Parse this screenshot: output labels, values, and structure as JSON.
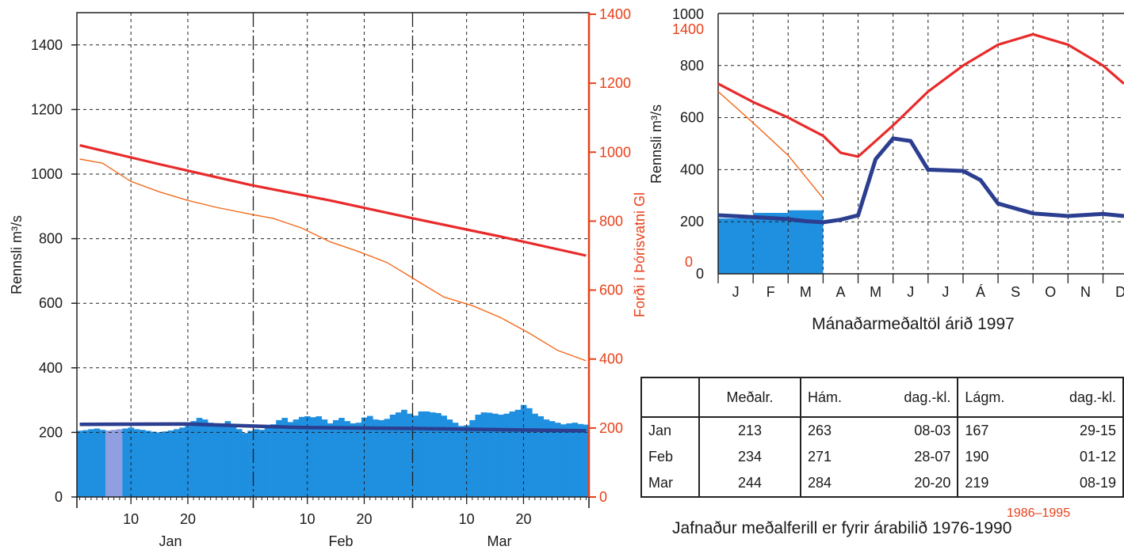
{
  "chart_data": [
    {
      "type": "bar+line",
      "ylabel": "Rennsli  m³/s",
      "ylabel_right": "Forði í Þórisvatni Gl",
      "ylim": [
        0,
        1500
      ],
      "ylim_right": [
        0,
        1400
      ],
      "yticks": [
        0,
        200,
        400,
        600,
        800,
        1000,
        1200,
        1400
      ],
      "yticks_right": [
        0,
        200,
        400,
        600,
        800,
        1000,
        1200,
        1400
      ],
      "xlim_days": [
        1,
        90
      ],
      "month_labels": [
        "Jan",
        "Feb",
        "Mar"
      ],
      "day_ticks": [
        {
          "day": 10,
          "label": "10"
        },
        {
          "day": 20,
          "label": "20"
        },
        {
          "day": 41,
          "label": "10"
        },
        {
          "day": 51,
          "label": "20"
        },
        {
          "day": 69,
          "label": "10"
        },
        {
          "day": 79,
          "label": "20"
        }
      ],
      "daily_flow": [
        205,
        207,
        210,
        212,
        208,
        206,
        208,
        210,
        212,
        215,
        210,
        208,
        205,
        202,
        200,
        203,
        206,
        210,
        215,
        220,
        235,
        245,
        240,
        230,
        228,
        225,
        235,
        222,
        210,
        198,
        205,
        210,
        208,
        215,
        225,
        238,
        245,
        232,
        240,
        248,
        250,
        247,
        250,
        240,
        228,
        238,
        245,
        235,
        228,
        230,
        246,
        251,
        240,
        238,
        242,
        255,
        262,
        270,
        258,
        252,
        265,
        265,
        262,
        260,
        252,
        240,
        230,
        220,
        222,
        238,
        255,
        262,
        261,
        258,
        255,
        258,
        265,
        270,
        285,
        275,
        258,
        250,
        240,
        235,
        230,
        225,
        228,
        230,
        226,
        224
      ],
      "highlight_days": [
        6,
        7,
        8
      ],
      "series": [
        {
          "name": "mean_flow",
          "color": "#2b3e90",
          "x": [
            1,
            20,
            40,
            60,
            90
          ],
          "values": [
            225,
            226,
            215,
            212,
            205
          ]
        },
        {
          "name": "reservoir",
          "color": "#e82a2a",
          "x": [
            1,
            15,
            31,
            45,
            59,
            75,
            90
          ],
          "values": [
            1020,
            965,
            905,
            860,
            810,
            755,
            700
          ]
        },
        {
          "name": "reservoir_mean",
          "color": "#f26a1c",
          "x": [
            1,
            5,
            10,
            15,
            20,
            25,
            31,
            35,
            40,
            45,
            50,
            55,
            59,
            65,
            70,
            75,
            80,
            85,
            90
          ],
          "values": [
            980,
            968,
            915,
            885,
            860,
            840,
            820,
            808,
            780,
            740,
            712,
            680,
            640,
            580,
            555,
            520,
            475,
            425,
            395
          ]
        }
      ]
    },
    {
      "type": "bar+line",
      "ylabel": "Rennsli  m³/s",
      "ytick_labels_left": [
        "0",
        "200",
        "400",
        "600",
        "800",
        "1000"
      ],
      "ytick_values": [
        0,
        200,
        400,
        600,
        800,
        1000
      ],
      "right_scale_labels": {
        "top": "1400",
        "bottom": "0"
      },
      "ylim": [
        0,
        1000
      ],
      "categories": [
        "J",
        "F",
        "M",
        "A",
        "M",
        "J",
        "J",
        "Á",
        "S",
        "O",
        "N",
        "D"
      ],
      "xlabel": "Mánaðarmeðaltöl árið 1997",
      "monthly_mean_flow_bars": [
        213,
        234,
        244
      ],
      "series": [
        {
          "name": "mean_flow",
          "color": "#2b3e90",
          "x": [
            0,
            1,
            2,
            2.5,
            3,
            3.5,
            4,
            4.5,
            5,
            5.5,
            6,
            7,
            7.5,
            8,
            9,
            10,
            11,
            11.6
          ],
          "values": [
            225,
            218,
            210,
            202,
            198,
            208,
            225,
            440,
            520,
            510,
            400,
            395,
            360,
            270,
            232,
            222,
            230,
            222
          ]
        },
        {
          "name": "reservoir",
          "color": "#e82a2a",
          "x": [
            0,
            1,
            2,
            3,
            3.5,
            4,
            5,
            6,
            7,
            8,
            9,
            10,
            11,
            11.6
          ],
          "values": [
            730,
            660,
            600,
            530,
            465,
            450,
            570,
            700,
            800,
            880,
            920,
            880,
            800,
            730
          ]
        },
        {
          "name": "reservoir_1997",
          "color": "#f26a1c",
          "x": [
            0,
            1,
            2,
            3
          ],
          "values": [
            700,
            580,
            455,
            290
          ]
        }
      ]
    }
  ],
  "table": {
    "headers": [
      "Meðalr.",
      "Hám.",
      "dag.-kl.",
      "Lágm.",
      "dag.-kl."
    ],
    "rows": [
      {
        "month": "Jan",
        "mean": "213",
        "max": "263",
        "max_date": "08-03",
        "min": "167",
        "min_date": "29-15"
      },
      {
        "month": "Feb",
        "mean": "234",
        "max": "271",
        "max_date": "28-07",
        "min": "190",
        "min_date": "01-12"
      },
      {
        "month": "Mar",
        "mean": "244",
        "max": "284",
        "max_date": "20-20",
        "min": "219",
        "min_date": "08-19"
      }
    ]
  },
  "caption": {
    "years": "1986–1995",
    "text": "Jafnaður meðalferill er fyrir árabilið 1976-1990"
  },
  "colors": {
    "bars": "#1f8fe0",
    "highlight": "#8f9fe0",
    "reservoir": "#e82a2a",
    "reservoir_mean": "#f26a1c",
    "mean_flow": "#2b3e90",
    "right_axis": "#e8401a"
  }
}
